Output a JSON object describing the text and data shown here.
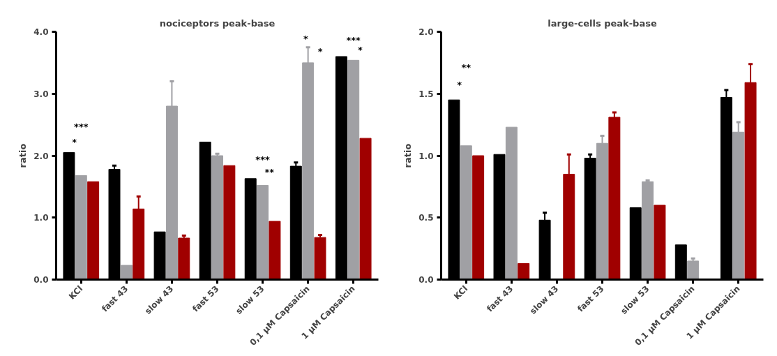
{
  "chart_data": [
    {
      "type": "bar",
      "title": "nociceptors peak-base",
      "ylabel": "ratio",
      "categories": [
        "KCl",
        "fast 43",
        "slow 43",
        "fast 53",
        "slow 53",
        "0,1 µM Capsaicin",
        "1 µM Capsaicin"
      ],
      "series": [
        {
          "color": "#000000",
          "values": [
            2.05,
            1.78,
            0.77,
            2.22,
            1.63,
            1.83,
            3.6
          ],
          "errors": [
            null,
            [
              1.78,
              1.84
            ],
            null,
            null,
            null,
            [
              1.83,
              1.89
            ],
            null
          ]
        },
        {
          "color": "#a0a0a4",
          "values": [
            1.68,
            0.23,
            2.8,
            2.0,
            1.52,
            3.5,
            3.54
          ],
          "errors": [
            null,
            null,
            [
              2.8,
              3.2
            ],
            [
              2.0,
              2.03
            ],
            null,
            [
              3.5,
              3.75
            ],
            null
          ]
        },
        {
          "color": "#a00000",
          "values": [
            1.58,
            1.14,
            0.67,
            1.84,
            0.94,
            0.68,
            2.28
          ],
          "errors": [
            null,
            [
              1.14,
              1.34
            ],
            [
              0.67,
              0.71
            ],
            null,
            null,
            [
              0.68,
              0.72
            ],
            null
          ]
        }
      ],
      "ylim": [
        0,
        4.0
      ],
      "yticks": [
        {
          "value": 0,
          "label": "0.0"
        },
        {
          "value": 1,
          "label": "1.0"
        },
        {
          "value": 2,
          "label": "2.0"
        },
        {
          "value": 3,
          "label": "3.0"
        },
        {
          "value": 4,
          "label": "4.0"
        }
      ],
      "grid": false,
      "annotations": [
        "***",
        "*",
        "***",
        "**",
        "*",
        "*",
        "***",
        "*"
      ]
    },
    {
      "type": "bar",
      "title": "large-cells peak-base",
      "ylabel": "ratio",
      "categories": [
        "KCl",
        "fast 43",
        "slow 43",
        "fast 53",
        "slow 53",
        "0,1 µM Capsaicin",
        "1 µM Capsaicin"
      ],
      "series": [
        {
          "color": "#000000",
          "values": [
            1.45,
            1.01,
            0.48,
            0.98,
            0.58,
            0.28,
            1.47
          ],
          "errors": [
            null,
            null,
            [
              0.48,
              0.54
            ],
            [
              0.98,
              1.01
            ],
            null,
            null,
            [
              1.47,
              1.53
            ]
          ]
        },
        {
          "color": "#a0a0a4",
          "values": [
            1.08,
            1.23,
            null,
            1.1,
            0.79,
            0.15,
            1.19
          ],
          "errors": [
            null,
            null,
            null,
            [
              1.1,
              1.16
            ],
            [
              0.79,
              0.8
            ],
            [
              0.15,
              0.17
            ],
            [
              1.19,
              1.27
            ]
          ]
        },
        {
          "color": "#a00000",
          "values": [
            1.0,
            0.13,
            0.85,
            1.31,
            0.6,
            null,
            1.59
          ],
          "errors": [
            null,
            null,
            [
              0.85,
              1.01
            ],
            [
              1.31,
              1.35
            ],
            null,
            null,
            [
              1.59,
              1.74
            ]
          ]
        }
      ],
      "ylim": [
        0,
        2.0
      ],
      "yticks": [
        {
          "value": 0,
          "label": "0.0"
        },
        {
          "value": 0.5,
          "label": "0.5"
        },
        {
          "value": 1,
          "label": "1.0"
        },
        {
          "value": 1.5,
          "label": "1.5"
        },
        {
          "value": 2,
          "label": "2.0"
        }
      ],
      "grid": false,
      "annotations": [
        "**",
        "*"
      ]
    }
  ]
}
